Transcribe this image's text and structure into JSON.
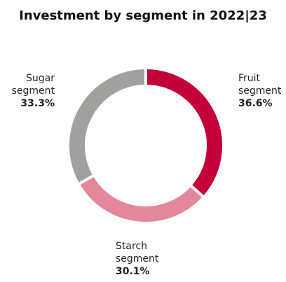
{
  "chart_data": {
    "type": "pie",
    "title": "Investment by segment in 2022|23",
    "categories": [
      "Fruit segment",
      "Starch segment",
      "Sugar segment"
    ],
    "values": [
      36.6,
      30.1,
      33.3
    ],
    "value_labels": [
      "36.6%",
      "30.1%",
      "33.3%"
    ],
    "colors": [
      "#c4003a",
      "#e3879b",
      "#a0a09f"
    ],
    "donut": true
  }
}
